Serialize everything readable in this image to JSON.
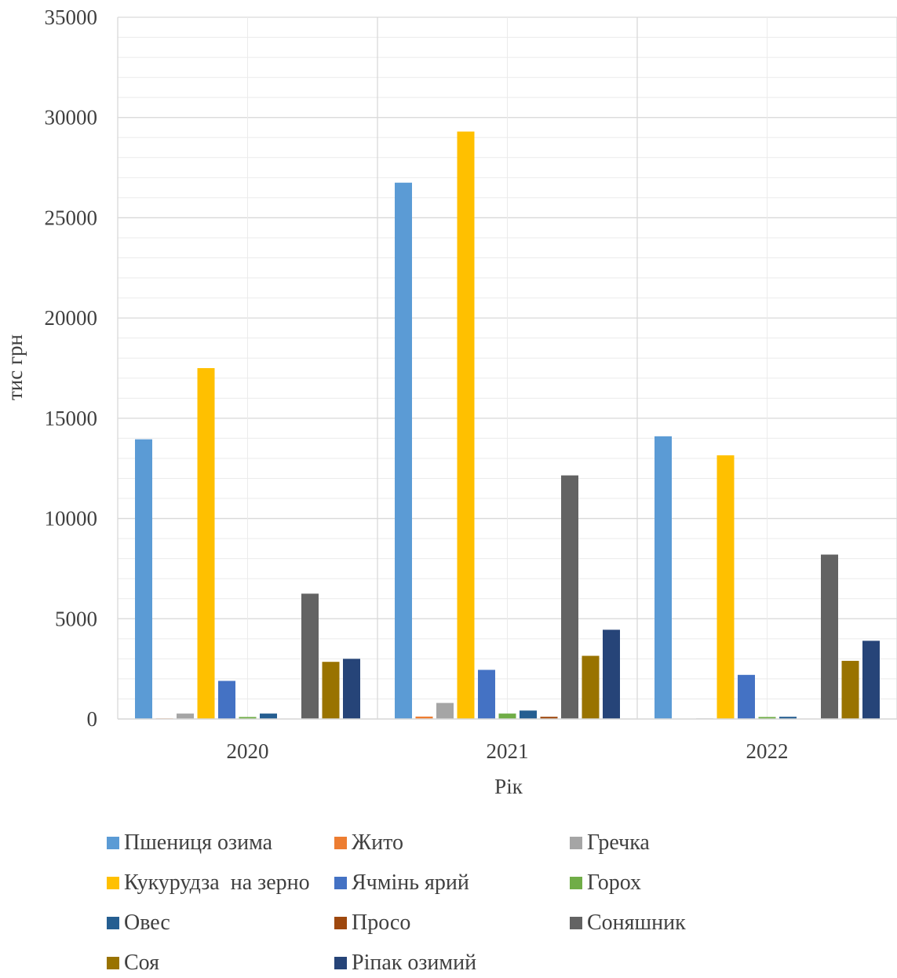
{
  "chart_data": {
    "type": "bar",
    "title": "",
    "xlabel": "Рік",
    "ylabel": "тис грн",
    "categories": [
      "2020",
      "2021",
      "2022"
    ],
    "ylim": [
      0,
      35000
    ],
    "yticks": [
      "0",
      "5000",
      "10000",
      "15000",
      "20000",
      "25000",
      "30000",
      "35000"
    ],
    "grid": true,
    "legend_position": "bottom",
    "series": [
      {
        "name": "Пшениця озима",
        "color": "#5B9BD5",
        "values": [
          13950,
          26750,
          14100
        ]
      },
      {
        "name": "Жито",
        "color": "#ED7D31",
        "values": [
          30,
          120,
          20
        ]
      },
      {
        "name": "Гречка",
        "color": "#A5A5A5",
        "values": [
          270,
          800,
          30
        ]
      },
      {
        "name": "Кукурудза  на зерно",
        "color": "#FFC000",
        "values": [
          17500,
          29300,
          13150
        ]
      },
      {
        "name": "Ячмінь ярий",
        "color": "#4472C4",
        "values": [
          1900,
          2450,
          2200
        ]
      },
      {
        "name": "Горох",
        "color": "#70AD47",
        "values": [
          100,
          270,
          100
        ]
      },
      {
        "name": "Овес",
        "color": "#255E91",
        "values": [
          270,
          420,
          110
        ]
      },
      {
        "name": "Просо",
        "color": "#9E480E",
        "values": [
          20,
          110,
          20
        ]
      },
      {
        "name": "Соняшник",
        "color": "#636363",
        "values": [
          6250,
          12150,
          8200
        ]
      },
      {
        "name": "Соя",
        "color": "#997300",
        "values": [
          2850,
          3150,
          2900
        ]
      },
      {
        "name": "Ріпак озимий",
        "color": "#264478",
        "values": [
          3000,
          4450,
          3900
        ]
      }
    ]
  }
}
